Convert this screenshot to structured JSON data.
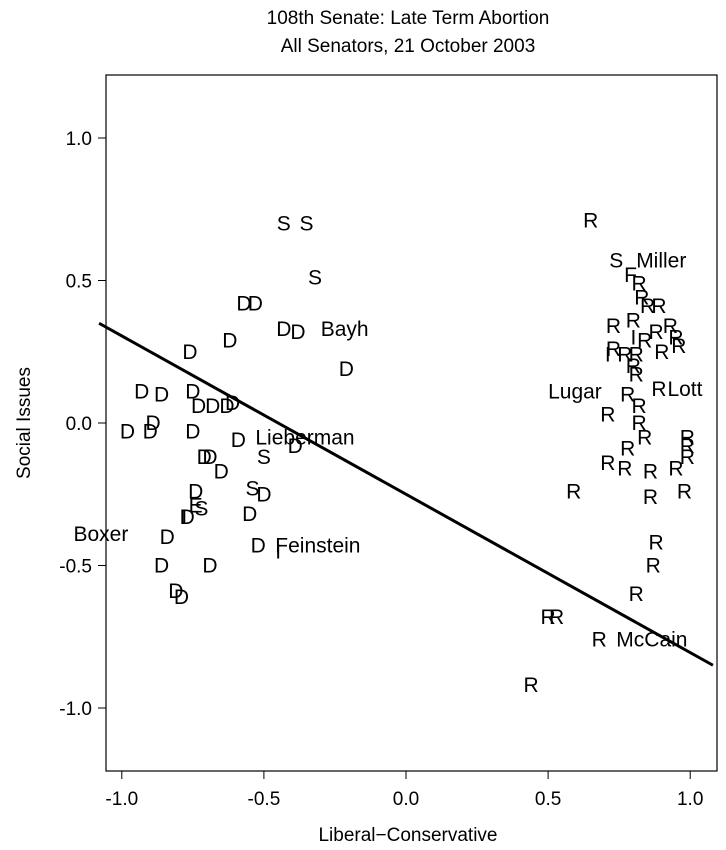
{
  "chart_data": {
    "type": "scatter",
    "title": "108th Senate: Late Term Abortion",
    "subtitle": "All Senators, 21 October 2003",
    "xlabel": "Liberal−Conservative",
    "ylabel": "Social Issues",
    "xlim": [
      -1.08,
      1.08
    ],
    "ylim": [
      -1.23,
      1.23
    ],
    "xticks": [
      -1.0,
      -0.5,
      0.0,
      0.5,
      1.0
    ],
    "xtick_labels": [
      "-1.0",
      "-0.5",
      "0.0",
      "0.5",
      "1.0"
    ],
    "yticks": [
      1.0,
      0.5,
      0.0,
      -0.5,
      -1.0
    ],
    "ytick_labels": [
      "1.0",
      "0.5",
      "0.0",
      "-0.5",
      "-1.0"
    ],
    "grid": false,
    "cutting_line": {
      "x1": -1.08,
      "y1": 0.35,
      "x2": 1.08,
      "y2": -0.85
    },
    "points": [
      {
        "x": -0.43,
        "y": 0.7,
        "label": "S"
      },
      {
        "x": -0.35,
        "y": 0.7,
        "label": "S"
      },
      {
        "x": -0.32,
        "y": 0.51,
        "label": "S"
      },
      {
        "x": -0.57,
        "y": 0.42,
        "label": "D"
      },
      {
        "x": -0.53,
        "y": 0.42,
        "label": "D"
      },
      {
        "x": -0.62,
        "y": 0.29,
        "label": "D"
      },
      {
        "x": -0.76,
        "y": 0.25,
        "label": "D"
      },
      {
        "x": -0.43,
        "y": 0.33,
        "label": "D"
      },
      {
        "x": -0.38,
        "y": 0.32,
        "label": "D"
      },
      {
        "x": -0.21,
        "y": 0.19,
        "label": "D"
      },
      {
        "x": -0.93,
        "y": 0.11,
        "label": "D"
      },
      {
        "x": -0.86,
        "y": 0.1,
        "label": "D"
      },
      {
        "x": -0.75,
        "y": 0.11,
        "label": "D"
      },
      {
        "x": -0.73,
        "y": 0.06,
        "label": "D"
      },
      {
        "x": -0.68,
        "y": 0.06,
        "label": "D"
      },
      {
        "x": -0.63,
        "y": 0.06,
        "label": "D"
      },
      {
        "x": -0.61,
        "y": 0.07,
        "label": "D"
      },
      {
        "x": -0.98,
        "y": -0.03,
        "label": "D"
      },
      {
        "x": -0.9,
        "y": -0.03,
        "label": "D"
      },
      {
        "x": -0.89,
        "y": 0.0,
        "label": "D"
      },
      {
        "x": -0.75,
        "y": -0.03,
        "label": "D"
      },
      {
        "x": -0.59,
        "y": -0.06,
        "label": "D"
      },
      {
        "x": -0.39,
        "y": -0.08,
        "label": "D"
      },
      {
        "x": -0.71,
        "y": -0.12,
        "label": "D"
      },
      {
        "x": -0.69,
        "y": -0.12,
        "label": "D"
      },
      {
        "x": -0.65,
        "y": -0.17,
        "label": "D"
      },
      {
        "x": -0.5,
        "y": -0.12,
        "label": "S"
      },
      {
        "x": -0.54,
        "y": -0.23,
        "label": "S"
      },
      {
        "x": -0.5,
        "y": -0.25,
        "label": "D"
      },
      {
        "x": -0.74,
        "y": -0.24,
        "label": "D"
      },
      {
        "x": -0.74,
        "y": -0.29,
        "label": "E"
      },
      {
        "x": -0.72,
        "y": -0.3,
        "label": "S"
      },
      {
        "x": -0.78,
        "y": -0.33,
        "label": "I"
      },
      {
        "x": -0.77,
        "y": -0.33,
        "label": "D"
      },
      {
        "x": -0.55,
        "y": -0.32,
        "label": "D"
      },
      {
        "x": -0.84,
        "y": -0.4,
        "label": "D"
      },
      {
        "x": -0.52,
        "y": -0.43,
        "label": "D"
      },
      {
        "x": -0.45,
        "y": -0.45,
        "label": "I"
      },
      {
        "x": -0.86,
        "y": -0.5,
        "label": "D"
      },
      {
        "x": -0.69,
        "y": -0.5,
        "label": "D"
      },
      {
        "x": -0.81,
        "y": -0.59,
        "label": "D"
      },
      {
        "x": -0.79,
        "y": -0.61,
        "label": "D"
      },
      {
        "x": 0.65,
        "y": 0.71,
        "label": "R"
      },
      {
        "x": 0.74,
        "y": 0.57,
        "label": "S"
      },
      {
        "x": 0.79,
        "y": 0.52,
        "label": "F"
      },
      {
        "x": 0.82,
        "y": 0.49,
        "label": "R"
      },
      {
        "x": 0.83,
        "y": 0.44,
        "label": "R"
      },
      {
        "x": 0.85,
        "y": 0.41,
        "label": "R"
      },
      {
        "x": 0.89,
        "y": 0.41,
        "label": "R"
      },
      {
        "x": 0.73,
        "y": 0.34,
        "label": "R"
      },
      {
        "x": 0.8,
        "y": 0.36,
        "label": "R"
      },
      {
        "x": 0.88,
        "y": 0.32,
        "label": "R"
      },
      {
        "x": 0.93,
        "y": 0.34,
        "label": "R"
      },
      {
        "x": 0.95,
        "y": 0.3,
        "label": "R"
      },
      {
        "x": 0.8,
        "y": 0.3,
        "label": "I"
      },
      {
        "x": 0.84,
        "y": 0.29,
        "label": "R"
      },
      {
        "x": 0.71,
        "y": 0.24,
        "label": "I"
      },
      {
        "x": 0.73,
        "y": 0.26,
        "label": "R"
      },
      {
        "x": 0.77,
        "y": 0.24,
        "label": "R"
      },
      {
        "x": 0.81,
        "y": 0.24,
        "label": "R"
      },
      {
        "x": 0.9,
        "y": 0.25,
        "label": "R"
      },
      {
        "x": 0.96,
        "y": 0.27,
        "label": "R"
      },
      {
        "x": 0.8,
        "y": 0.2,
        "label": "R"
      },
      {
        "x": 0.81,
        "y": 0.17,
        "label": "R"
      },
      {
        "x": 0.78,
        "y": 0.1,
        "label": "R"
      },
      {
        "x": 0.89,
        "y": 0.12,
        "label": "R"
      },
      {
        "x": 0.82,
        "y": 0.06,
        "label": "R"
      },
      {
        "x": 0.71,
        "y": 0.03,
        "label": "R"
      },
      {
        "x": 0.82,
        "y": 0.0,
        "label": "R"
      },
      {
        "x": 0.84,
        "y": -0.05,
        "label": "R"
      },
      {
        "x": 0.78,
        "y": -0.09,
        "label": "R"
      },
      {
        "x": 0.99,
        "y": -0.05,
        "label": "R"
      },
      {
        "x": 0.99,
        "y": -0.08,
        "label": "R"
      },
      {
        "x": 0.99,
        "y": -0.12,
        "label": "R"
      },
      {
        "x": 0.71,
        "y": -0.14,
        "label": "R"
      },
      {
        "x": 0.77,
        "y": -0.16,
        "label": "R"
      },
      {
        "x": 0.86,
        "y": -0.17,
        "label": "R"
      },
      {
        "x": 0.95,
        "y": -0.16,
        "label": "R"
      },
      {
        "x": 0.59,
        "y": -0.24,
        "label": "R"
      },
      {
        "x": 0.86,
        "y": -0.26,
        "label": "R"
      },
      {
        "x": 0.98,
        "y": -0.24,
        "label": "R"
      },
      {
        "x": 0.88,
        "y": -0.42,
        "label": "R"
      },
      {
        "x": 0.87,
        "y": -0.5,
        "label": "R"
      },
      {
        "x": 0.81,
        "y": -0.6,
        "label": "R"
      },
      {
        "x": 0.5,
        "y": -0.68,
        "label": "R"
      },
      {
        "x": 0.53,
        "y": -0.68,
        "label": "R"
      },
      {
        "x": 0.68,
        "y": -0.76,
        "label": "R"
      },
      {
        "x": 0.44,
        "y": -0.92,
        "label": "R"
      }
    ],
    "annotations": [
      {
        "text": "Miller",
        "x": 0.81,
        "y": 0.57
      },
      {
        "text": "Bayh",
        "x": -0.3,
        "y": 0.33
      },
      {
        "text": "Lugar",
        "x": 0.5,
        "y": 0.11
      },
      {
        "text": "Lott",
        "x": 0.92,
        "y": 0.12
      },
      {
        "text": "Lieberman",
        "x": -0.53,
        "y": -0.05
      },
      {
        "text": "Boxer",
        "x": -1.17,
        "y": -0.39
      },
      {
        "text": "Feinstein",
        "x": -0.46,
        "y": -0.43
      },
      {
        "text": "McCain",
        "x": 0.74,
        "y": -0.76
      }
    ]
  }
}
